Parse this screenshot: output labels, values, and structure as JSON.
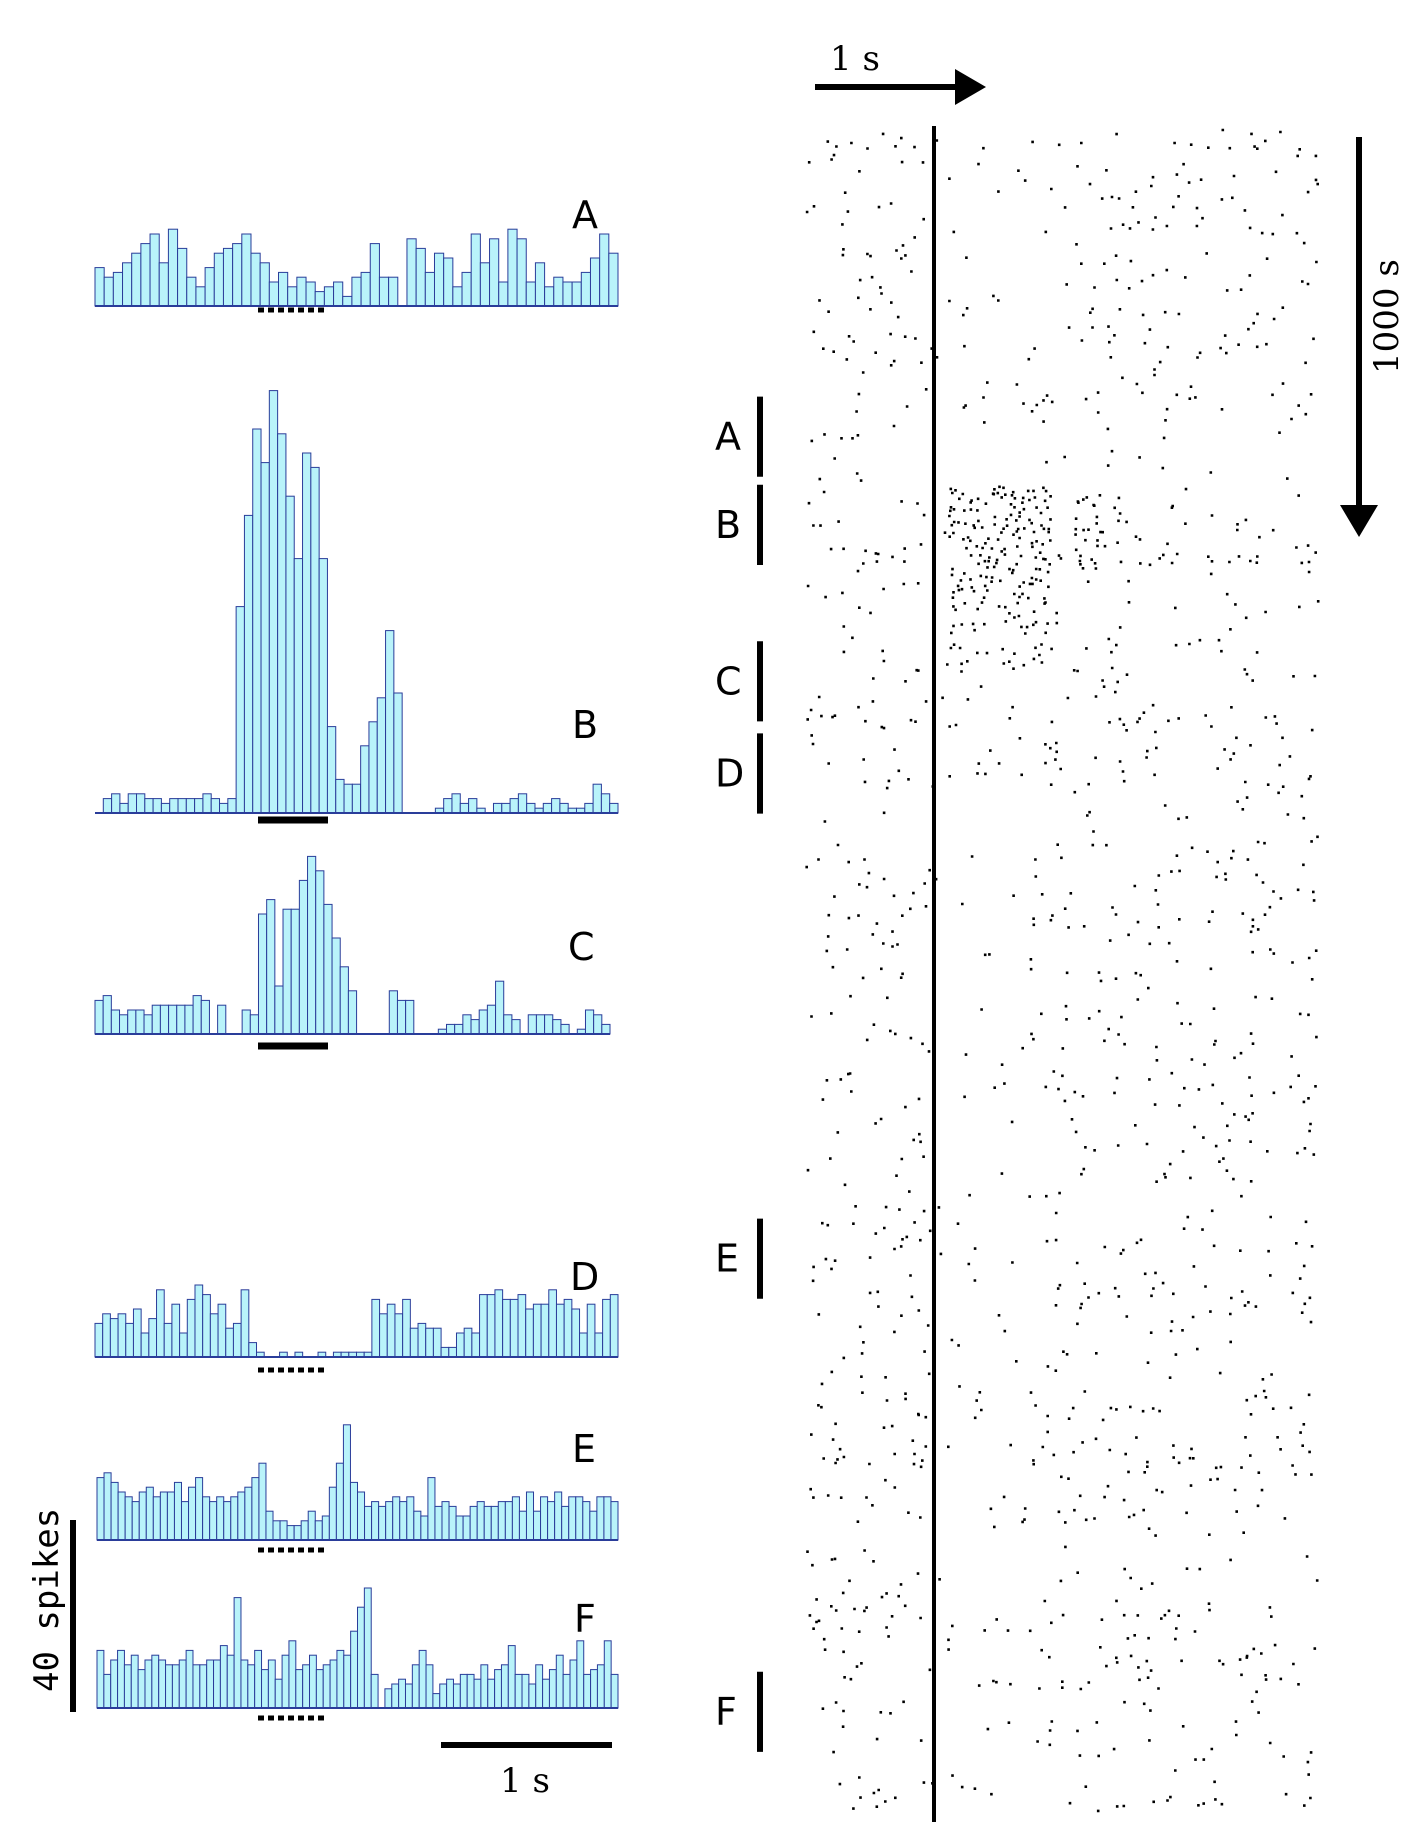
{
  "chart_data": [
    {
      "type": "bar",
      "panel": "A",
      "label": "A",
      "stimulus": "dashed",
      "values": [
        8,
        6,
        7,
        9,
        11,
        13,
        15,
        9,
        16,
        12,
        6,
        4,
        8,
        11,
        12,
        13,
        15,
        11,
        9,
        5,
        7,
        4,
        6,
        5,
        3,
        4,
        5,
        2,
        6,
        7,
        13,
        6,
        6,
        0,
        14,
        12,
        7,
        11,
        10,
        4,
        7,
        15,
        9,
        14,
        5,
        16,
        14,
        5,
        9,
        4,
        6,
        5,
        5,
        7,
        10,
        15,
        11
      ]
    },
    {
      "type": "bar",
      "panel": "B",
      "label": "B",
      "stimulus": "solid",
      "values": [
        0,
        3,
        4,
        2,
        4,
        4,
        3,
        3,
        2,
        3,
        3,
        3,
        3,
        4,
        3,
        2,
        3,
        43,
        62,
        80,
        73,
        88,
        79,
        66,
        53,
        75,
        72,
        53,
        18,
        7,
        6,
        6,
        14,
        19,
        24,
        38,
        25,
        0,
        0,
        0,
        0,
        1,
        3,
        4,
        2,
        3,
        1,
        0,
        2,
        2,
        3,
        4,
        2,
        1,
        2,
        3,
        2,
        1,
        1,
        2,
        6,
        4,
        2
      ]
    },
    {
      "type": "bar",
      "panel": "C",
      "label": "C",
      "stimulus": "solid",
      "values": [
        7,
        8,
        5,
        4,
        5,
        5,
        4,
        6,
        6,
        6,
        6,
        6,
        8,
        7,
        0,
        6,
        0,
        0,
        5,
        4,
        25,
        28,
        10,
        26,
        26,
        32,
        37,
        34,
        27,
        20,
        14,
        9,
        0,
        0,
        0,
        0,
        9,
        7,
        7,
        0,
        0,
        0,
        1,
        2,
        2,
        4,
        3,
        5,
        6,
        11,
        4,
        3,
        0,
        4,
        4,
        4,
        3,
        2,
        0,
        1,
        5,
        4,
        2
      ]
    },
    {
      "type": "bar",
      "panel": "D",
      "label": "D",
      "stimulus": "dashed",
      "values": [
        7,
        9,
        8,
        9,
        7,
        10,
        5,
        8,
        14,
        7,
        11,
        5,
        12,
        15,
        13,
        9,
        11,
        6,
        7,
        14,
        3,
        1,
        0,
        0,
        1,
        0,
        1,
        0,
        0,
        1,
        0,
        1,
        1,
        1,
        1,
        1,
        12,
        9,
        11,
        9,
        12,
        6,
        7,
        6,
        6,
        2,
        2,
        5,
        6,
        5,
        13,
        13,
        14,
        12,
        12,
        13,
        10,
        11,
        11,
        14,
        11,
        12,
        10,
        5,
        11,
        5,
        12,
        13
      ]
    },
    {
      "type": "bar",
      "panel": "E",
      "label": "E",
      "stimulus": "dashed",
      "values": [
        13,
        14,
        12,
        10,
        9,
        8,
        10,
        11,
        9,
        10,
        10,
        12,
        8,
        11,
        13,
        9,
        8,
        9,
        8,
        9,
        10,
        11,
        13,
        16,
        6,
        4,
        4,
        3,
        3,
        4,
        6,
        4,
        5,
        11,
        16,
        24,
        12,
        10,
        7,
        8,
        7,
        8,
        9,
        8,
        9,
        6,
        5,
        13,
        7,
        8,
        7,
        5,
        5,
        7,
        8,
        7,
        7,
        8,
        8,
        9,
        6,
        10,
        6,
        9,
        8,
        10,
        7,
        9,
        9,
        8,
        6,
        9,
        9,
        8
      ]
    },
    {
      "type": "bar",
      "panel": "F",
      "label": "F",
      "stimulus": "dashed",
      "values": [
        12,
        7,
        10,
        12,
        9,
        11,
        8,
        10,
        11,
        10,
        9,
        9,
        10,
        12,
        9,
        9,
        10,
        10,
        13,
        11,
        23,
        10,
        9,
        12,
        8,
        10,
        6,
        11,
        14,
        8,
        9,
        11,
        8,
        9,
        10,
        12,
        11,
        16,
        21,
        25,
        7,
        0,
        4,
        5,
        6,
        5,
        9,
        12,
        9,
        3,
        5,
        6,
        5,
        7,
        7,
        6,
        9,
        6,
        8,
        9,
        13,
        7,
        7,
        5,
        9,
        6,
        8,
        11,
        7,
        10,
        14,
        7,
        8,
        9,
        14,
        7
      ]
    },
    {
      "type": "scatter",
      "panel": "raster",
      "blocks": [
        {
          "label": "A",
          "trial_start": 67,
          "trial_end": 87
        },
        {
          "label": "B",
          "trial_start": 89,
          "trial_end": 109
        },
        {
          "label": "C",
          "trial_start": 128,
          "trial_end": 148
        },
        {
          "label": "D",
          "trial_start": 151,
          "trial_end": 171
        },
        {
          "label": "E",
          "trial_start": 272,
          "trial_end": 292
        },
        {
          "label": "F",
          "trial_start": 385,
          "trial_end": 405
        }
      ]
    }
  ],
  "scale": {
    "hist_time": "1 s",
    "hist_count": "40 spikes",
    "raster_time": "1 s",
    "raster_trials": "1000 s"
  }
}
